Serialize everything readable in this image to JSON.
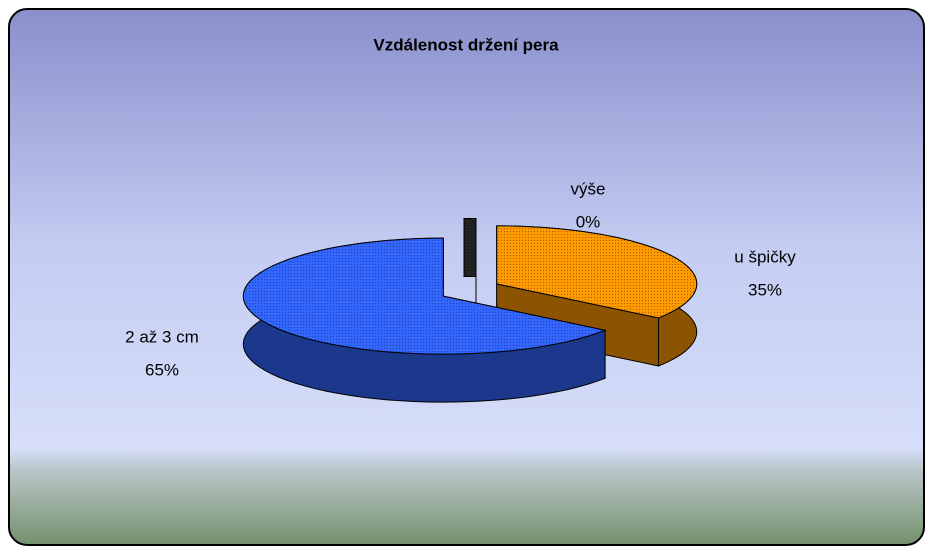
{
  "chart_data": {
    "type": "pie",
    "title": "Vzdálenost držení pera",
    "categories": [
      "výše",
      "u špičky",
      "2 až 3 cm"
    ],
    "values": [
      0,
      35,
      65
    ],
    "value_labels": [
      "0%",
      "35%",
      "65%"
    ],
    "colors": [
      "#222222",
      "#ff9900",
      "#3366ff"
    ]
  }
}
